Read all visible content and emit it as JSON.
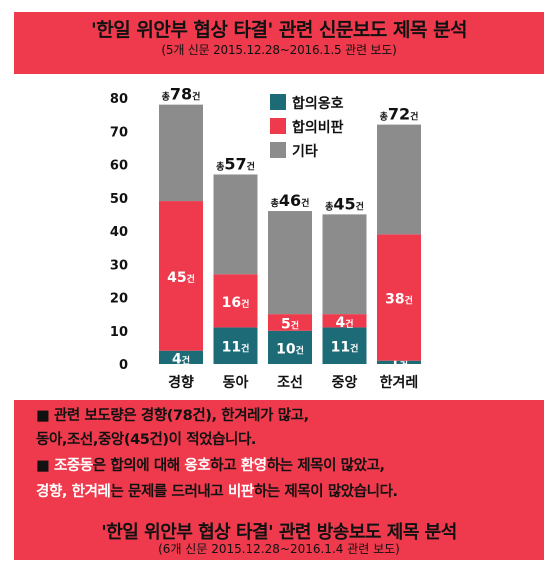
{
  "header": {
    "title": "'한일 위안부 협상 타결' 관련 신문보도 제목 분석",
    "subtitle": "(5개 신문 2015.12.28~2016.1.5 관련 보도)"
  },
  "chart_data": {
    "type": "bar",
    "stacked": true,
    "categories": [
      "경향",
      "동아",
      "조선",
      "중앙",
      "한겨레"
    ],
    "series": [
      {
        "name": "합의옹호",
        "color": "#1e6b78",
        "values": [
          4,
          11,
          10,
          11,
          1
        ]
      },
      {
        "name": "합의비판",
        "color": "#ee3a4c",
        "values": [
          45,
          16,
          5,
          4,
          38
        ]
      },
      {
        "name": "기타",
        "color": "#8c8c8c",
        "values": [
          29,
          30,
          31,
          30,
          33
        ]
      }
    ],
    "segment_labels": [
      [
        "4건",
        "45건",
        ""
      ],
      [
        "11건",
        "16건",
        ""
      ],
      [
        "10건",
        "5건",
        ""
      ],
      [
        "11건",
        "4건",
        ""
      ],
      [
        "1건",
        "38건",
        ""
      ]
    ],
    "total_labels": [
      "총78건",
      "총57건",
      "총46건",
      "총45건",
      "총72건"
    ],
    "ylim": [
      0,
      80
    ],
    "yticks": [
      0,
      10,
      20,
      30,
      40,
      50,
      60,
      70,
      80
    ],
    "legend_position": "top-right",
    "grid": false
  },
  "notes": {
    "line1": "■ 관련 보도량은 경향(78건), 한겨레가 많고,",
    "line2": "동아,조선,중앙(45건)이 적었습니다.",
    "line3_parts": [
      "■ ",
      "조중동",
      "은 합의에 대해 ",
      "옹호",
      "하고 ",
      "환영",
      "하는 제목이 많았고,"
    ],
    "line4_parts": [
      "경향, 한겨레",
      "는 문제를 드러내고 ",
      "비판",
      "하는 제목이 많았습니다."
    ]
  },
  "footer": {
    "title": "'한일 위안부 협상 타결' 관련 방송보도 제목 분석",
    "subtitle": "(6개 신문 2015.12.28~2016.1.4 관련 보도)"
  }
}
